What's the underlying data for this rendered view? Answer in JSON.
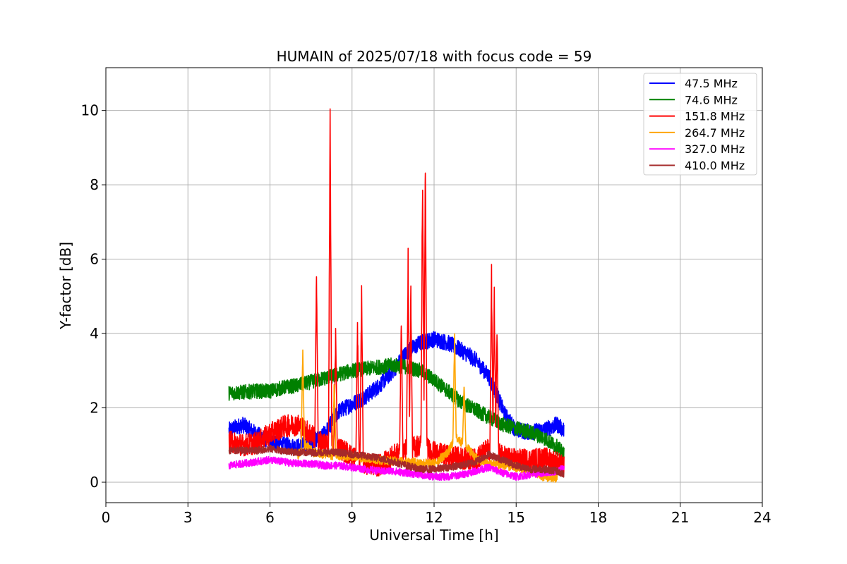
{
  "chart_data": {
    "type": "line",
    "title": "HUMAIN of 2025/07/18 with focus code = 59",
    "xlabel": "Universal Time [h]",
    "ylabel": "Y-factor [dB]",
    "xlim": [
      0,
      24
    ],
    "ylim": [
      -0.55,
      11.15
    ],
    "xticks": [
      0,
      3,
      6,
      9,
      12,
      15,
      18,
      21,
      24
    ],
    "yticks": [
      0,
      2,
      4,
      6,
      8,
      10
    ],
    "grid": true,
    "legend_position": "top-right",
    "series": [
      {
        "name": " 47.5 MHz",
        "color": "#0000ff",
        "noise": 0.22,
        "points": [
          [
            4.5,
            1.4
          ],
          [
            5.0,
            1.55
          ],
          [
            5.5,
            1.3
          ],
          [
            6.0,
            1.1
          ],
          [
            6.5,
            1.0
          ],
          [
            7.0,
            0.95
          ],
          [
            7.5,
            1.05
          ],
          [
            8.0,
            1.3
          ],
          [
            8.5,
            1.9
          ],
          [
            9.0,
            2.1
          ],
          [
            9.5,
            2.3
          ],
          [
            10.0,
            2.6
          ],
          [
            10.5,
            3.0
          ],
          [
            11.0,
            3.5
          ],
          [
            11.5,
            3.75
          ],
          [
            12.0,
            3.85
          ],
          [
            12.5,
            3.75
          ],
          [
            13.0,
            3.55
          ],
          [
            13.5,
            3.3
          ],
          [
            14.0,
            2.85
          ],
          [
            14.3,
            2.35
          ],
          [
            14.6,
            1.8
          ],
          [
            15.0,
            1.4
          ],
          [
            15.5,
            1.35
          ],
          [
            16.0,
            1.4
          ],
          [
            16.5,
            1.55
          ],
          [
            16.75,
            1.4
          ]
        ]
      },
      {
        "name": " 74.6 MHz",
        "color": "#008000",
        "noise": 0.2,
        "points": [
          [
            4.5,
            2.4
          ],
          [
            5.0,
            2.42
          ],
          [
            5.5,
            2.45
          ],
          [
            6.0,
            2.45
          ],
          [
            6.5,
            2.55
          ],
          [
            7.0,
            2.6
          ],
          [
            7.5,
            2.7
          ],
          [
            8.0,
            2.8
          ],
          [
            8.5,
            2.9
          ],
          [
            9.0,
            3.0
          ],
          [
            9.5,
            3.05
          ],
          [
            10.0,
            3.1
          ],
          [
            10.5,
            3.15
          ],
          [
            11.0,
            3.1
          ],
          [
            11.5,
            3.0
          ],
          [
            12.0,
            2.75
          ],
          [
            12.5,
            2.45
          ],
          [
            13.0,
            2.15
          ],
          [
            13.5,
            1.95
          ],
          [
            14.0,
            1.75
          ],
          [
            14.5,
            1.55
          ],
          [
            15.0,
            1.45
          ],
          [
            15.5,
            1.35
          ],
          [
            16.0,
            1.2
          ],
          [
            16.5,
            0.95
          ],
          [
            16.75,
            0.75
          ]
        ]
      },
      {
        "name": "151.8 MHz",
        "color": "#ff0000",
        "noise": 0.3,
        "points": [
          [
            4.5,
            1.1
          ],
          [
            5.0,
            1.0
          ],
          [
            5.5,
            1.05
          ],
          [
            6.0,
            1.3
          ],
          [
            6.5,
            1.5
          ],
          [
            7.0,
            1.55
          ],
          [
            7.5,
            1.3
          ],
          [
            8.0,
            1.0
          ],
          [
            8.5,
            0.95
          ],
          [
            9.0,
            0.7
          ],
          [
            9.5,
            0.5
          ],
          [
            10.0,
            0.45
          ],
          [
            10.5,
            0.7
          ],
          [
            11.0,
            0.9
          ],
          [
            11.5,
            1.0
          ],
          [
            12.0,
            0.8
          ],
          [
            12.5,
            0.7
          ],
          [
            13.0,
            0.65
          ],
          [
            13.5,
            0.6
          ],
          [
            14.0,
            0.9
          ],
          [
            14.5,
            0.7
          ],
          [
            15.0,
            0.6
          ],
          [
            15.5,
            0.6
          ],
          [
            16.0,
            0.65
          ],
          [
            16.5,
            0.55
          ],
          [
            16.75,
            0.4
          ]
        ],
        "spikes": [
          [
            7.7,
            6.0
          ],
          [
            8.2,
            10.6
          ],
          [
            8.4,
            4.2
          ],
          [
            9.2,
            4.5
          ],
          [
            9.35,
            5.6
          ],
          [
            10.8,
            4.6
          ],
          [
            11.05,
            6.3
          ],
          [
            11.15,
            5.3
          ],
          [
            11.58,
            9.05
          ],
          [
            11.68,
            8.9
          ],
          [
            14.1,
            5.9
          ],
          [
            14.2,
            5.3
          ],
          [
            14.3,
            4.4
          ]
        ]
      },
      {
        "name": "264.7 MHz",
        "color": "#ffa500",
        "noise": 0.12,
        "points": [
          [
            7.0,
            0.7
          ],
          [
            7.3,
            1.0
          ],
          [
            7.6,
            0.8
          ],
          [
            8.0,
            0.75
          ],
          [
            8.5,
            0.7
          ],
          [
            9.0,
            0.7
          ],
          [
            9.5,
            0.65
          ],
          [
            10.0,
            0.6
          ],
          [
            11.0,
            0.55
          ],
          [
            12.0,
            0.5
          ],
          [
            12.5,
            0.8
          ],
          [
            12.8,
            1.2
          ],
          [
            13.2,
            0.95
          ],
          [
            13.6,
            0.6
          ],
          [
            14.0,
            0.5
          ],
          [
            14.5,
            0.45
          ],
          [
            15.0,
            0.4
          ],
          [
            15.5,
            0.3
          ],
          [
            16.0,
            0.15
          ],
          [
            16.5,
            0.1
          ]
        ],
        "spikes": [
          [
            7.2,
            3.75
          ],
          [
            8.35,
            2.9
          ],
          [
            12.75,
            4.25
          ],
          [
            13.1,
            2.8
          ]
        ]
      },
      {
        "name": "327.0 MHz",
        "color": "#ff00ff",
        "noise": 0.1,
        "points": [
          [
            4.5,
            0.45
          ],
          [
            5.0,
            0.5
          ],
          [
            5.5,
            0.55
          ],
          [
            6.0,
            0.6
          ],
          [
            6.5,
            0.55
          ],
          [
            7.0,
            0.5
          ],
          [
            7.5,
            0.5
          ],
          [
            8.0,
            0.45
          ],
          [
            8.5,
            0.45
          ],
          [
            9.0,
            0.4
          ],
          [
            9.5,
            0.35
          ],
          [
            10.0,
            0.3
          ],
          [
            10.5,
            0.3
          ],
          [
            11.0,
            0.25
          ],
          [
            11.5,
            0.2
          ],
          [
            12.0,
            0.15
          ],
          [
            12.5,
            0.15
          ],
          [
            13.0,
            0.2
          ],
          [
            13.5,
            0.3
          ],
          [
            14.0,
            0.4
          ],
          [
            14.5,
            0.25
          ],
          [
            15.0,
            0.15
          ],
          [
            15.5,
            0.2
          ],
          [
            16.0,
            0.25
          ],
          [
            16.5,
            0.3
          ],
          [
            16.75,
            0.4
          ]
        ]
      },
      {
        "name": "410.0 MHz",
        "color": "#a52a2a",
        "noise": 0.1,
        "points": [
          [
            4.5,
            0.85
          ],
          [
            5.0,
            0.85
          ],
          [
            5.5,
            0.85
          ],
          [
            6.0,
            0.9
          ],
          [
            6.5,
            0.85
          ],
          [
            7.0,
            0.8
          ],
          [
            7.5,
            0.8
          ],
          [
            8.0,
            0.8
          ],
          [
            8.5,
            0.8
          ],
          [
            9.0,
            0.75
          ],
          [
            9.5,
            0.7
          ],
          [
            10.0,
            0.65
          ],
          [
            10.5,
            0.55
          ],
          [
            11.0,
            0.45
          ],
          [
            11.5,
            0.35
          ],
          [
            12.0,
            0.35
          ],
          [
            12.5,
            0.4
          ],
          [
            13.0,
            0.45
          ],
          [
            13.5,
            0.55
          ],
          [
            14.0,
            0.75
          ],
          [
            14.5,
            0.6
          ],
          [
            15.0,
            0.45
          ],
          [
            15.5,
            0.35
          ],
          [
            16.0,
            0.35
          ],
          [
            16.5,
            0.3
          ],
          [
            16.75,
            0.2
          ]
        ]
      }
    ]
  }
}
